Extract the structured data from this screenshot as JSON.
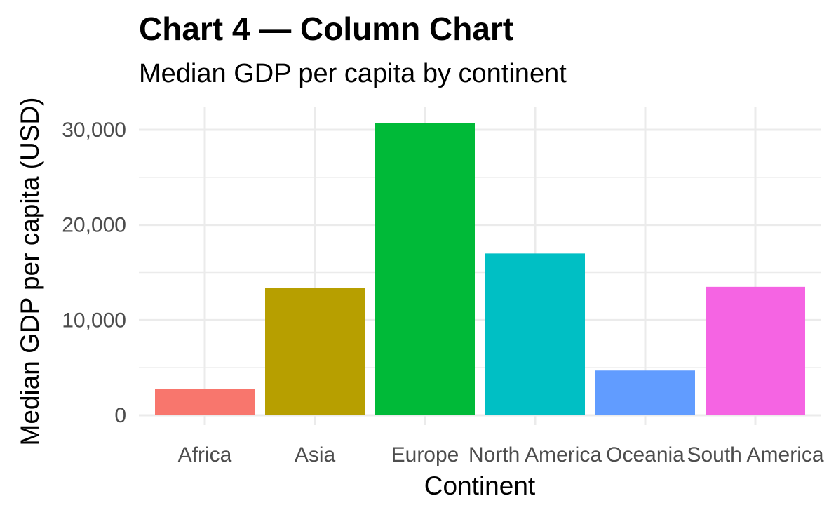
{
  "chart_data": {
    "type": "bar",
    "title": "Chart 4 — Column Chart",
    "subtitle": "Median GDP per capita by continent",
    "xlabel": "Continent",
    "ylabel": "Median GDP per capita (USD)",
    "categories": [
      "Africa",
      "Asia",
      "Europe",
      "North America",
      "Oceania",
      "South America"
    ],
    "values": [
      2800,
      13400,
      30700,
      17000,
      4700,
      13500
    ],
    "colors": [
      "#F8766D",
      "#B79F00",
      "#00BA38",
      "#00BFC4",
      "#619CFF",
      "#F564E3"
    ],
    "ylim": [
      0,
      32000
    ],
    "yticks": [
      0,
      10000,
      20000,
      30000
    ],
    "ytick_labels": [
      "0",
      "10,000",
      "20,000",
      "30,000"
    ],
    "grid": true,
    "legend": "none"
  }
}
